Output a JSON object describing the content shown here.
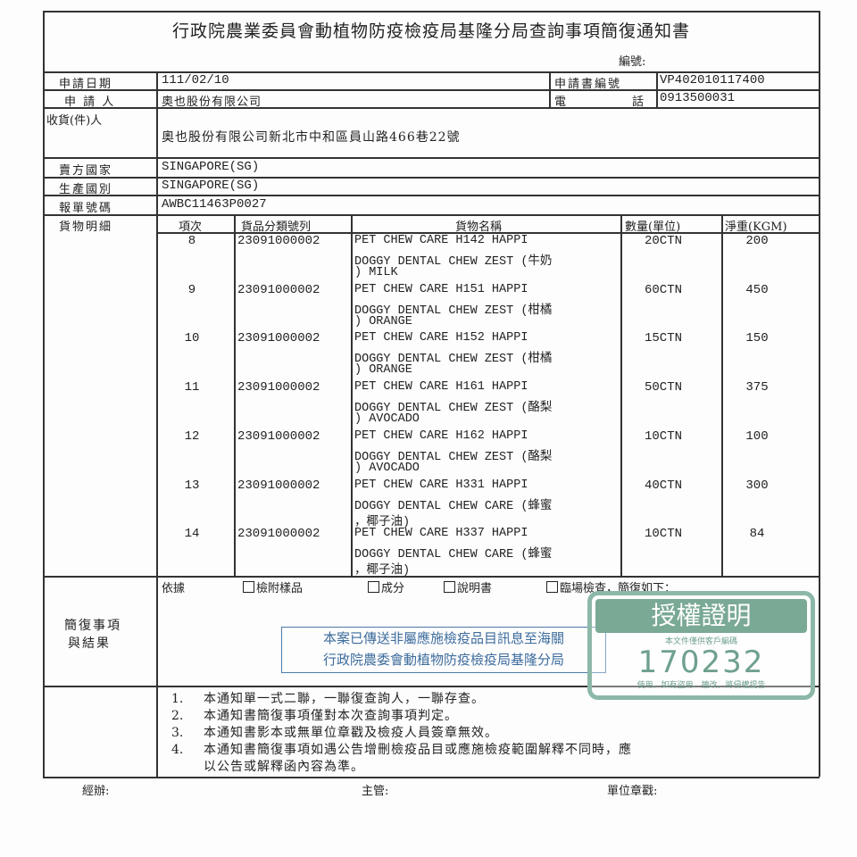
{
  "title": "行政院農業委員會動植物防疫檢疫局基隆分局查詢事項簡復通知書",
  "serial_label": "編號:",
  "fields": {
    "apply_date_label": "申請日期",
    "apply_date": "111/02/10",
    "app_no_label": "申請書編號",
    "app_no": "VP402010117400",
    "applicant_label": "申 請 人",
    "applicant": "奧也股份有限公司",
    "phone_label_1": "電",
    "phone_label_2": "話",
    "phone": "0913500031",
    "consignee_label": "收貨(件)人",
    "consignee": "奧也股份有限公司新北市中和區員山路466巷22號",
    "seller_country_label": "賣方國家",
    "seller_country": "SINGAPORE(SG)",
    "origin_label": "生產國別",
    "origin": "SINGAPORE(SG)",
    "declaration_label": "報單號碼",
    "declaration": "AWBC11463P0027",
    "goods_label": "貨物明細"
  },
  "goods": {
    "headers": [
      "項次",
      "貨品分類號列",
      "貨物名稱",
      "數量(單位)",
      "淨重(KGM)"
    ],
    "rows": [
      {
        "no": "8",
        "code": "23091000002",
        "name": [
          "PET CHEW CARE H142 HAPPI",
          "DOGGY DENTAL CHEW ZEST (牛奶",
          ") MILK"
        ],
        "qty": "20CTN",
        "weight": "200"
      },
      {
        "no": "9",
        "code": "23091000002",
        "name": [
          "PET CHEW CARE H151 HAPPI",
          "DOGGY DENTAL CHEW ZEST (柑橘",
          ") ORANGE"
        ],
        "qty": "60CTN",
        "weight": "450"
      },
      {
        "no": "10",
        "code": "23091000002",
        "name": [
          "PET CHEW CARE H152 HAPPI",
          "DOGGY DENTAL CHEW ZEST (柑橘",
          ") ORANGE"
        ],
        "qty": "15CTN",
        "weight": "150"
      },
      {
        "no": "11",
        "code": "23091000002",
        "name": [
          "PET CHEW CARE H161 HAPPI",
          "DOGGY DENTAL CHEW ZEST (酪梨",
          ") AVOCADO"
        ],
        "qty": "50CTN",
        "weight": "375"
      },
      {
        "no": "12",
        "code": "23091000002",
        "name": [
          "PET CHEW CARE H162 HAPPI",
          "DOGGY DENTAL CHEW ZEST (酪梨",
          ") AVOCADO"
        ],
        "qty": "10CTN",
        "weight": "100"
      },
      {
        "no": "13",
        "code": "23091000002",
        "name": [
          "PET CHEW CARE H331 HAPPI",
          "DOGGY DENTAL CHEW CARE (蜂蜜",
          "，椰子油)"
        ],
        "qty": "40CTN",
        "weight": "300"
      },
      {
        "no": "14",
        "code": "23091000002",
        "name": [
          "PET CHEW CARE H337 HAPPI",
          "DOGGY DENTAL CHEW CARE (蜂蜜",
          "，椰子油)"
        ],
        "qty": "10CTN",
        "weight": "84"
      }
    ]
  },
  "reply": {
    "label_1": "簡復事項",
    "label_2": "與結果",
    "basis": "依據",
    "checks": [
      "檢附樣品",
      "成分",
      "說明書",
      "臨場檢查，簡復如下："
    ],
    "stamp": [
      "本案已傳送非屬應施檢疫品目訊息至海關",
      "行政院農委會動植物防疫檢疫局基隆分局"
    ]
  },
  "notes": [
    {
      "n": "1.",
      "text": "本通知單一式二聯，一聯復查詢人，一聯存查。"
    },
    {
      "n": "2.",
      "text": "本通知書簡復事項僅對本次查詢事項判定。"
    },
    {
      "n": "3.",
      "text": "本通知書影本或無單位章戳及檢疫人員簽章無效。"
    },
    {
      "n": "4.",
      "text": "本通知書簡復事項如遇公告增刪檢疫品目或應施檢疫範圍解釋不同時，應"
    },
    {
      "n": "",
      "text": "以公告或解釋函內容為準。"
    }
  ],
  "signatures": {
    "handler": "經辦:",
    "supervisor": "主管:",
    "unit_seal": "單位章戳:"
  },
  "watermark": {
    "title": "授權證明",
    "subtitle": "本文件僅供客戶編碼",
    "code": "170232",
    "footer": "使用，如有盜用、擅改，將侵權提告",
    "color": "#7aa995"
  }
}
